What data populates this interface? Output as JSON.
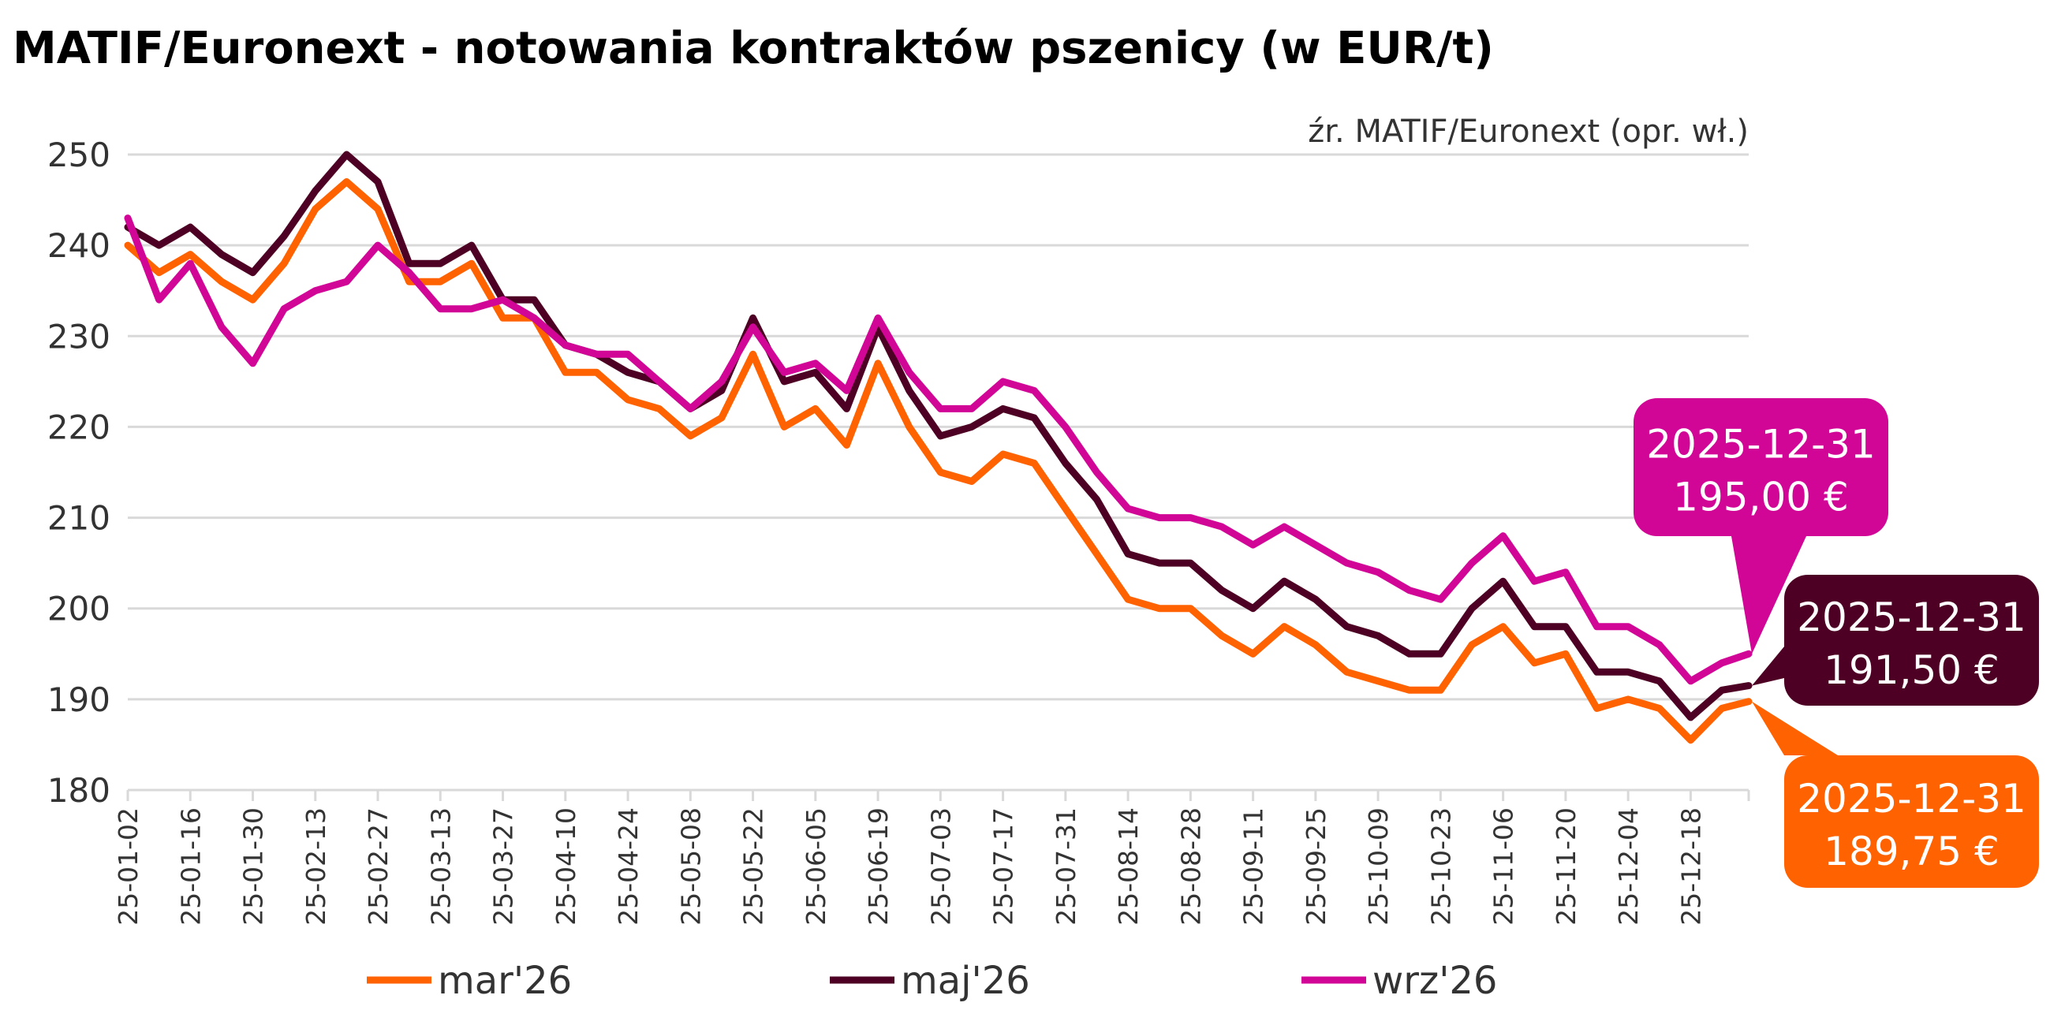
{
  "chart_data": {
    "type": "line",
    "title": "MATIF/Euronext - notowania kontraktów pszenicy (w EUR/t)",
    "source": "źr. MATIF/Euronext (opr. wł.)",
    "xlabel": "",
    "ylabel": "",
    "ylim": [
      180,
      250
    ],
    "yticks": [
      180,
      190,
      200,
      210,
      220,
      230,
      240,
      250
    ],
    "grid": true,
    "legend_position": "bottom",
    "x_start": "2025-01-02",
    "x_step_days": 7,
    "x_span_days": 363,
    "xtick_labels": [
      "25-01-02",
      "25-01-16",
      "25-01-30",
      "25-02-13",
      "25-02-27",
      "25-03-13",
      "25-03-27",
      "25-04-10",
      "25-04-24",
      "25-05-08",
      "25-05-22",
      "25-06-05",
      "25-06-19",
      "25-07-03",
      "25-07-17",
      "25-07-31",
      "25-08-14",
      "25-08-28",
      "25-09-11",
      "25-09-25",
      "25-10-09",
      "25-10-23",
      "25-11-06",
      "25-11-20",
      "25-12-04",
      "25-12-18"
    ],
    "series": [
      {
        "name": "mar'26",
        "color": "#FF6200",
        "values": [
          240,
          237,
          239,
          236,
          234,
          238,
          244,
          247,
          244,
          236,
          236,
          238,
          232,
          232,
          226,
          226,
          223,
          222,
          219,
          221,
          228,
          220,
          222,
          218,
          227,
          220,
          215,
          214,
          217,
          216,
          211,
          206,
          201,
          200,
          200,
          197,
          195,
          198,
          196,
          193,
          192,
          191,
          191,
          196,
          198,
          194,
          195,
          189,
          190,
          189,
          185.5,
          189,
          189.75
        ]
      },
      {
        "name": "maj'26",
        "color": "#4D0024",
        "values": [
          242,
          240,
          242,
          239,
          237,
          241,
          246,
          250,
          247,
          238,
          238,
          240,
          234,
          234,
          229,
          228,
          226,
          225,
          222,
          224,
          232,
          225,
          226,
          222,
          231,
          224,
          219,
          220,
          222,
          221,
          216,
          212,
          206,
          205,
          205,
          202,
          200,
          203,
          201,
          198,
          197,
          195,
          195,
          200,
          203,
          198,
          198,
          193,
          193,
          192,
          188,
          191,
          191.5
        ]
      },
      {
        "name": "wrz'26",
        "color": "#D10596",
        "values": [
          243,
          234,
          238,
          231,
          227,
          233,
          235,
          236,
          240,
          237,
          233,
          233,
          234,
          232,
          229,
          228,
          228,
          225,
          222,
          225,
          231,
          226,
          227,
          224,
          232,
          226,
          222,
          222,
          225,
          224,
          220,
          215,
          211,
          210,
          210,
          209,
          207,
          209,
          207,
          205,
          204,
          202,
          201,
          205,
          208,
          203,
          204,
          198,
          198,
          196,
          192,
          194,
          195
        ]
      }
    ],
    "annotations": [
      {
        "series": "wrz'26",
        "date": "2025-12-31",
        "value_label": "195,00 €",
        "value": 195.0
      },
      {
        "series": "maj'26",
        "date": "2025-12-31",
        "value_label": "191,50 €",
        "value": 191.5
      },
      {
        "series": "mar'26",
        "date": "2025-12-31",
        "value_label": "189,75 €",
        "value": 189.75
      }
    ]
  }
}
